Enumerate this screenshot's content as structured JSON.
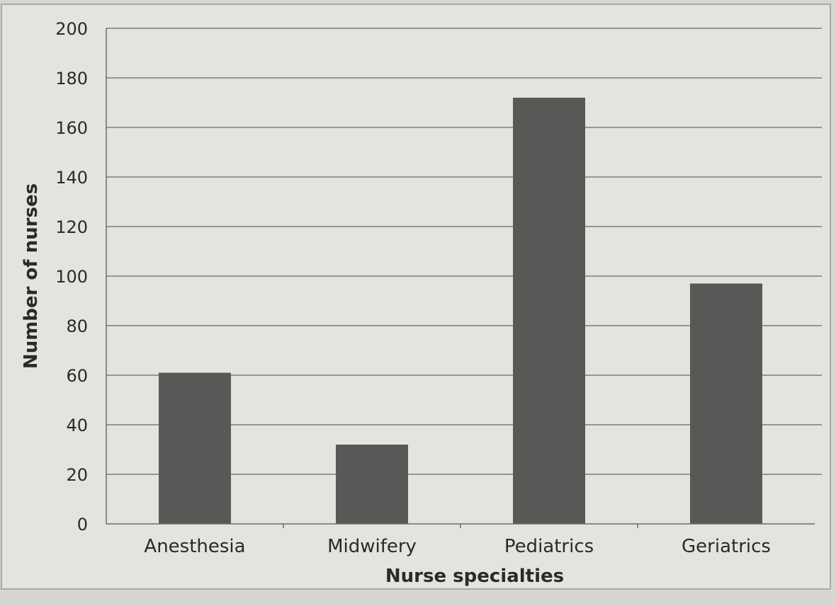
{
  "chart_data": {
    "type": "bar",
    "categories": [
      "Anesthesia",
      "Midwifery",
      "Pediatrics",
      "Geriatrics"
    ],
    "values": [
      61,
      32,
      172,
      97
    ],
    "title": "",
    "xlabel": "Nurse specialties",
    "ylabel": "Number of nurses",
    "ylim": [
      0,
      200
    ],
    "yticks": [
      0,
      20,
      40,
      60,
      80,
      100,
      120,
      140,
      160,
      180,
      200
    ],
    "grid": true,
    "legend": "none",
    "colors": {
      "bar": "#5a5856",
      "background": "#e4e3df",
      "grid": "#7f7d79"
    }
  }
}
